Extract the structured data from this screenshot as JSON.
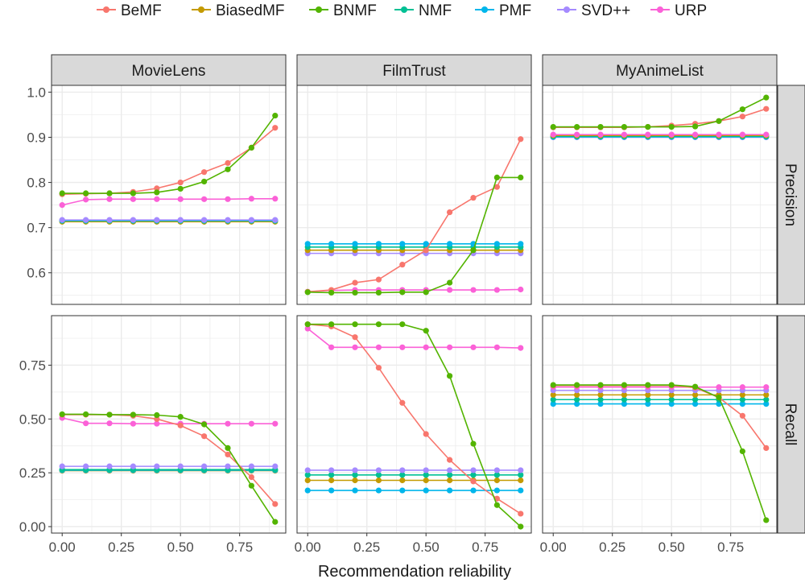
{
  "colors": {
    "BeMF": "#F8766D",
    "BiasedMF": "#C49A00",
    "BNMF": "#53B400",
    "NMF": "#00C094",
    "PMF": "#00B6EB",
    "SVD++": "#A58AFF",
    "URP": "#FB61D7"
  },
  "chart_data": {
    "type": "line",
    "xlabel": "Recommendation reliability",
    "ylabel": "",
    "grid": true,
    "legend_position": "top",
    "legend": [
      "BeMF",
      "BiasedMF",
      "BNMF",
      "NMF",
      "PMF",
      "SVD++",
      "URP"
    ],
    "x": [
      0,
      0.1,
      0.2,
      0.3,
      0.4,
      0.5,
      0.6,
      0.7,
      0.8,
      0.9
    ],
    "x_ticks": [
      "0.00",
      "0.25",
      "0.50",
      "0.75"
    ],
    "xlim": [
      -0.045,
      0.945
    ],
    "columns": [
      "MovieLens",
      "FilmTrust",
      "MyAnimeList"
    ],
    "rows": [
      {
        "label": "Precision",
        "ylim": [
          0.53,
          1.015
        ],
        "y_ticks": [
          "0.6",
          "0.7",
          "0.8",
          "0.9",
          "1.0"
        ]
      },
      {
        "label": "Recall",
        "ylim": [
          -0.03,
          0.98
        ],
        "y_ticks": [
          "0.00",
          "0.25",
          "0.50",
          "0.75"
        ]
      }
    ],
    "panels": [
      {
        "row": "Precision",
        "column": "MovieLens",
        "series": [
          {
            "name": "BiasedMF",
            "values": [
              0.713,
              0.713,
              0.713,
              0.713,
              0.713,
              0.713,
              0.713,
              0.713,
              0.713,
              0.713
            ]
          },
          {
            "name": "NMF",
            "values": [
              0.715,
              0.715,
              0.715,
              0.715,
              0.715,
              0.715,
              0.715,
              0.715,
              0.715,
              0.715
            ]
          },
          {
            "name": "PMF",
            "values": [
              0.716,
              0.716,
              0.716,
              0.716,
              0.716,
              0.716,
              0.716,
              0.716,
              0.716,
              0.716
            ]
          },
          {
            "name": "SVD++",
            "values": [
              0.717,
              0.717,
              0.717,
              0.717,
              0.717,
              0.717,
              0.717,
              0.717,
              0.717,
              0.717
            ]
          },
          {
            "name": "URP",
            "values": [
              0.75,
              0.762,
              0.763,
              0.763,
              0.763,
              0.763,
              0.763,
              0.763,
              0.764,
              0.764
            ]
          },
          {
            "name": "BeMF",
            "values": [
              0.774,
              0.775,
              0.776,
              0.779,
              0.787,
              0.8,
              0.823,
              0.843,
              0.877,
              0.921
            ]
          },
          {
            "name": "BNMF",
            "values": [
              0.776,
              0.776,
              0.776,
              0.776,
              0.778,
              0.786,
              0.802,
              0.829,
              0.877,
              0.948
            ]
          }
        ]
      },
      {
        "row": "Precision",
        "column": "FilmTrust",
        "series": [
          {
            "name": "SVD++",
            "values": [
              0.643,
              0.643,
              0.643,
              0.643,
              0.643,
              0.643,
              0.643,
              0.643,
              0.643,
              0.643
            ]
          },
          {
            "name": "BiasedMF",
            "values": [
              0.65,
              0.65,
              0.65,
              0.65,
              0.65,
              0.65,
              0.65,
              0.65,
              0.65,
              0.65
            ]
          },
          {
            "name": "NMF",
            "values": [
              0.657,
              0.657,
              0.657,
              0.657,
              0.657,
              0.657,
              0.657,
              0.657,
              0.657,
              0.657
            ]
          },
          {
            "name": "PMF",
            "values": [
              0.664,
              0.664,
              0.664,
              0.664,
              0.664,
              0.664,
              0.664,
              0.664,
              0.664,
              0.664
            ]
          },
          {
            "name": "URP",
            "values": [
              0.558,
              0.561,
              0.562,
              0.562,
              0.562,
              0.562,
              0.562,
              0.562,
              0.562,
              0.563
            ]
          },
          {
            "name": "BeMF",
            "values": [
              0.558,
              0.562,
              0.578,
              0.585,
              0.618,
              0.65,
              0.734,
              0.766,
              0.79,
              0.896
            ]
          },
          {
            "name": "BNMF",
            "values": [
              0.557,
              0.556,
              0.556,
              0.556,
              0.557,
              0.557,
              0.578,
              0.65,
              0.811,
              0.811
            ]
          }
        ]
      },
      {
        "row": "Precision",
        "column": "MyAnimeList",
        "series": [
          {
            "name": "SVD++",
            "values": [
              0.9,
              0.9,
              0.9,
              0.9,
              0.9,
              0.9,
              0.9,
              0.9,
              0.9,
              0.9
            ]
          },
          {
            "name": "PMF",
            "values": [
              0.901,
              0.901,
              0.901,
              0.901,
              0.901,
              0.901,
              0.901,
              0.901,
              0.901,
              0.901
            ]
          },
          {
            "name": "NMF",
            "values": [
              0.902,
              0.902,
              0.902,
              0.902,
              0.902,
              0.902,
              0.902,
              0.902,
              0.902,
              0.902
            ]
          },
          {
            "name": "BiasedMF",
            "values": [
              0.904,
              0.904,
              0.904,
              0.904,
              0.904,
              0.904,
              0.904,
              0.904,
              0.904,
              0.904
            ]
          },
          {
            "name": "URP",
            "values": [
              0.906,
              0.906,
              0.906,
              0.906,
              0.906,
              0.906,
              0.906,
              0.906,
              0.906,
              0.906
            ]
          },
          {
            "name": "BeMF",
            "values": [
              0.922,
              0.922,
              0.922,
              0.922,
              0.923,
              0.926,
              0.93,
              0.936,
              0.946,
              0.963
            ]
          },
          {
            "name": "BNMF",
            "values": [
              0.923,
              0.923,
              0.923,
              0.923,
              0.923,
              0.923,
              0.924,
              0.936,
              0.962,
              0.988
            ]
          }
        ]
      },
      {
        "row": "Recall",
        "column": "MovieLens",
        "series": [
          {
            "name": "BiasedMF",
            "values": [
              0.26,
              0.26,
              0.26,
              0.26,
              0.26,
              0.26,
              0.26,
              0.26,
              0.26,
              0.26
            ]
          },
          {
            "name": "PMF",
            "values": [
              0.262,
              0.262,
              0.262,
              0.262,
              0.262,
              0.262,
              0.262,
              0.262,
              0.262,
              0.262
            ]
          },
          {
            "name": "NMF",
            "values": [
              0.265,
              0.265,
              0.265,
              0.265,
              0.265,
              0.265,
              0.265,
              0.265,
              0.265,
              0.265
            ]
          },
          {
            "name": "SVD++",
            "values": [
              0.28,
              0.28,
              0.28,
              0.28,
              0.28,
              0.28,
              0.28,
              0.28,
              0.28,
              0.28
            ]
          },
          {
            "name": "URP",
            "values": [
              0.505,
              0.48,
              0.48,
              0.478,
              0.478,
              0.478,
              0.478,
              0.478,
              0.478,
              0.478
            ]
          },
          {
            "name": "BeMF",
            "values": [
              0.52,
              0.52,
              0.52,
              0.515,
              0.5,
              0.47,
              0.42,
              0.335,
              0.23,
              0.105
            ]
          },
          {
            "name": "BNMF",
            "values": [
              0.522,
              0.522,
              0.52,
              0.52,
              0.518,
              0.51,
              0.475,
              0.365,
              0.19,
              0.022
            ]
          }
        ]
      },
      {
        "row": "Recall",
        "column": "FilmTrust",
        "series": [
          {
            "name": "PMF",
            "values": [
              0.168,
              0.168,
              0.168,
              0.168,
              0.168,
              0.168,
              0.168,
              0.168,
              0.168,
              0.168
            ]
          },
          {
            "name": "BiasedMF",
            "values": [
              0.215,
              0.215,
              0.215,
              0.215,
              0.215,
              0.215,
              0.215,
              0.215,
              0.215,
              0.215
            ]
          },
          {
            "name": "NMF",
            "values": [
              0.24,
              0.24,
              0.24,
              0.24,
              0.24,
              0.24,
              0.24,
              0.24,
              0.24,
              0.24
            ]
          },
          {
            "name": "SVD++",
            "values": [
              0.262,
              0.262,
              0.262,
              0.262,
              0.262,
              0.262,
              0.262,
              0.262,
              0.262,
              0.262
            ]
          },
          {
            "name": "URP",
            "values": [
              0.92,
              0.833,
              0.833,
              0.833,
              0.833,
              0.833,
              0.833,
              0.833,
              0.833,
              0.83
            ]
          },
          {
            "name": "BeMF",
            "values": [
              0.94,
              0.93,
              0.88,
              0.738,
              0.575,
              0.43,
              0.31,
              0.21,
              0.13,
              0.06
            ]
          },
          {
            "name": "BNMF",
            "values": [
              0.94,
              0.94,
              0.94,
              0.94,
              0.94,
              0.91,
              0.7,
              0.385,
              0.1,
              0.0
            ]
          }
        ]
      },
      {
        "row": "Recall",
        "column": "MyAnimeList",
        "series": [
          {
            "name": "PMF",
            "values": [
              0.57,
              0.57,
              0.57,
              0.57,
              0.57,
              0.57,
              0.57,
              0.57,
              0.57,
              0.57
            ]
          },
          {
            "name": "NMF",
            "values": [
              0.59,
              0.59,
              0.59,
              0.59,
              0.59,
              0.59,
              0.59,
              0.59,
              0.59,
              0.59
            ]
          },
          {
            "name": "BiasedMF",
            "values": [
              0.612,
              0.612,
              0.612,
              0.612,
              0.612,
              0.612,
              0.612,
              0.612,
              0.612,
              0.612
            ]
          },
          {
            "name": "SVD++",
            "values": [
              0.633,
              0.633,
              0.633,
              0.633,
              0.633,
              0.633,
              0.633,
              0.633,
              0.633,
              0.633
            ]
          },
          {
            "name": "URP",
            "values": [
              0.648,
              0.648,
              0.648,
              0.648,
              0.648,
              0.648,
              0.648,
              0.648,
              0.648,
              0.648
            ]
          },
          {
            "name": "BeMF",
            "values": [
              0.655,
              0.655,
              0.655,
              0.655,
              0.655,
              0.655,
              0.645,
              0.6,
              0.515,
              0.365
            ]
          },
          {
            "name": "BNMF",
            "values": [
              0.658,
              0.658,
              0.658,
              0.658,
              0.658,
              0.658,
              0.65,
              0.6,
              0.35,
              0.03
            ]
          }
        ]
      }
    ]
  }
}
